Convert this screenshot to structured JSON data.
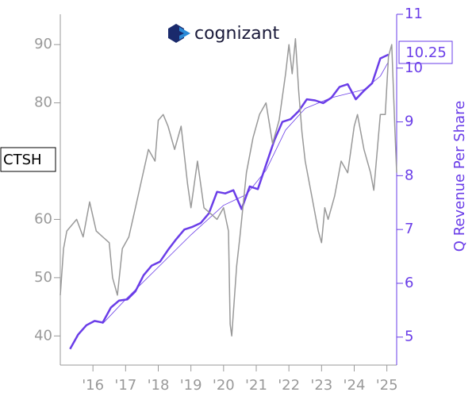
{
  "chart_data": {
    "type": "line",
    "logo_text": "cognizant",
    "ticker_label": "CTSH",
    "y2label": "Q Revenue Per Share",
    "xlim": [
      2015.0,
      2025.3
    ],
    "xticks": [
      {
        "value": 2016,
        "label": "'16"
      },
      {
        "value": 2017,
        "label": "'17"
      },
      {
        "value": 2018,
        "label": "'18"
      },
      {
        "value": 2019,
        "label": "'19"
      },
      {
        "value": 2020,
        "label": "'20"
      },
      {
        "value": 2021,
        "label": "'21"
      },
      {
        "value": 2022,
        "label": "'22"
      },
      {
        "value": 2023,
        "label": "'23"
      },
      {
        "value": 2024,
        "label": "'24"
      },
      {
        "value": 2025,
        "label": "'25"
      }
    ],
    "ylim": [
      35,
      95.2
    ],
    "yticks": [
      40,
      50,
      60,
      80,
      90
    ],
    "y2lim": [
      4.48,
      11
    ],
    "y2ticks": [
      5,
      6,
      7,
      8,
      9,
      10,
      11
    ],
    "series": [
      {
        "color": "#6a3de8",
        "axis": "y2",
        "width": 2.5,
        "x": [
          2015.3,
          2015.55,
          2015.8,
          2016.05,
          2016.3,
          2016.55,
          2016.8,
          2017.05,
          2017.3,
          2017.55,
          2017.8,
          2018.05,
          2018.3,
          2018.55,
          2018.8,
          2019.05,
          2019.3,
          2019.55,
          2019.8,
          2020.05,
          2020.3,
          2020.55,
          2020.8,
          2021.05,
          2021.3,
          2021.55,
          2021.8,
          2022.05,
          2022.3,
          2022.55,
          2022.8,
          2023.05,
          2023.3,
          2023.55,
          2023.8,
          2024.05,
          2024.3,
          2024.55,
          2024.8,
          2025.05
        ],
        "values": [
          4.78,
          5.05,
          5.22,
          5.3,
          5.27,
          5.55,
          5.68,
          5.7,
          5.85,
          6.15,
          6.33,
          6.4,
          6.62,
          6.82,
          7.0,
          7.05,
          7.12,
          7.3,
          7.7,
          7.67,
          7.73,
          7.38,
          7.8,
          7.75,
          8.2,
          8.65,
          9.0,
          9.05,
          9.2,
          9.42,
          9.4,
          9.35,
          9.45,
          9.65,
          9.7,
          9.42,
          9.58,
          9.72,
          10.18,
          10.25
        ]
      },
      {
        "color": "#6a3de8",
        "axis": "y2",
        "width": 0.8,
        "x": [
          2016.3,
          2017.0,
          2018.0,
          2019.0,
          2020.0,
          2020.7,
          2021.3,
          2021.9,
          2022.5,
          2023.3,
          2024.3,
          2024.8,
          2025.05
        ],
        "values": [
          5.25,
          5.7,
          6.3,
          6.9,
          7.45,
          7.65,
          8.1,
          8.85,
          9.25,
          9.45,
          9.6,
          9.85,
          10.12
        ]
      },
      {
        "color": "#999999",
        "axis": "y",
        "width": 1.5,
        "x": [
          2015.0,
          2015.1,
          2015.2,
          2015.5,
          2015.7,
          2015.9,
          2016.1,
          2016.3,
          2016.5,
          2016.6,
          2016.75,
          2016.9,
          2017.1,
          2017.3,
          2017.5,
          2017.7,
          2017.9,
          2018.0,
          2018.15,
          2018.3,
          2018.5,
          2018.7,
          2018.9,
          2019.0,
          2019.2,
          2019.4,
          2019.6,
          2019.8,
          2020.0,
          2020.15,
          2020.2,
          2020.25,
          2020.4,
          2020.5,
          2020.7,
          2020.9,
          2021.1,
          2021.3,
          2021.5,
          2021.7,
          2021.9,
          2022.0,
          2022.1,
          2022.2,
          2022.3,
          2022.4,
          2022.5,
          2022.7,
          2022.9,
          2023.0,
          2023.1,
          2023.2,
          2023.4,
          2023.6,
          2023.8,
          2024.0,
          2024.1,
          2024.3,
          2024.5,
          2024.6,
          2024.8,
          2024.95,
          2025.05,
          2025.15,
          2025.25,
          2025.3
        ],
        "values": [
          47,
          55,
          58,
          60,
          57,
          63,
          58,
          57,
          56,
          50,
          47,
          55,
          57,
          62,
          67,
          72,
          70,
          77,
          78,
          76,
          72,
          76,
          66,
          62,
          70,
          62,
          61,
          60,
          62,
          58,
          42,
          40,
          52,
          57,
          68,
          74,
          78,
          80,
          73,
          77,
          85,
          90,
          85,
          91,
          82,
          75,
          70,
          64,
          58,
          56,
          62,
          60,
          64,
          70,
          68,
          76,
          78,
          72,
          68,
          65,
          78,
          78,
          88,
          90,
          75,
          68
        ]
      }
    ]
  }
}
